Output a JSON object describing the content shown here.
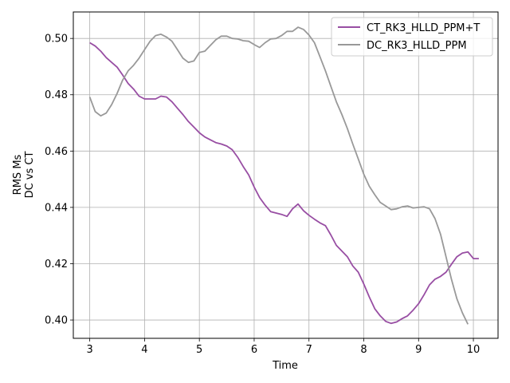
{
  "chart_data": {
    "type": "line",
    "xlabel": "Time",
    "ylabel_lines": [
      "RMS Ms",
      "DC vs CT"
    ],
    "xlim": [
      2.7,
      10.45
    ],
    "ylim": [
      0.3935,
      0.5094
    ],
    "xticks": [
      3,
      4,
      5,
      6,
      7,
      8,
      9,
      10
    ],
    "yticks": [
      0.4,
      0.42,
      0.44,
      0.46,
      0.48,
      0.5
    ],
    "grid": true,
    "legend_position": "top-right",
    "series": [
      {
        "name": "CT_RK3_HLLD_PPM+T",
        "color": "#984ea3",
        "x": [
          3.0,
          3.1,
          3.2,
          3.3,
          3.4,
          3.5,
          3.6,
          3.7,
          3.8,
          3.9,
          4.0,
          4.1,
          4.2,
          4.3,
          4.4,
          4.5,
          4.6,
          4.7,
          4.8,
          4.9,
          5.0,
          5.1,
          5.2,
          5.3,
          5.4,
          5.5,
          5.6,
          5.7,
          5.8,
          5.9,
          6.0,
          6.1,
          6.2,
          6.3,
          6.4,
          6.5,
          6.6,
          6.7,
          6.8,
          6.9,
          7.0,
          7.1,
          7.2,
          7.3,
          7.4,
          7.5,
          7.6,
          7.7,
          7.8,
          7.9,
          8.0,
          8.1,
          8.2,
          8.3,
          8.4,
          8.5,
          8.6,
          8.7,
          8.8,
          8.9,
          9.0,
          9.1,
          9.2,
          9.3,
          9.4,
          9.5,
          9.6,
          9.7,
          9.8,
          9.9,
          10.0,
          10.1
        ],
        "y": [
          0.4985,
          0.4973,
          0.4955,
          0.4932,
          0.4915,
          0.4898,
          0.487,
          0.484,
          0.482,
          0.4795,
          0.4785,
          0.4785,
          0.4785,
          0.4795,
          0.4792,
          0.4775,
          0.4752,
          0.473,
          0.4705,
          0.4685,
          0.4665,
          0.465,
          0.464,
          0.463,
          0.4625,
          0.4618,
          0.4605,
          0.4578,
          0.4545,
          0.4515,
          0.4472,
          0.4435,
          0.4408,
          0.4385,
          0.438,
          0.4375,
          0.4368,
          0.4395,
          0.4412,
          0.4388,
          0.4372,
          0.4358,
          0.4345,
          0.4335,
          0.4302,
          0.4265,
          0.4245,
          0.4225,
          0.4192,
          0.417,
          0.4128,
          0.4082,
          0.404,
          0.4015,
          0.3995,
          0.3988,
          0.3993,
          0.4005,
          0.4015,
          0.4035,
          0.4058,
          0.409,
          0.4125,
          0.4145,
          0.4155,
          0.417,
          0.4198,
          0.4225,
          0.4238,
          0.4242,
          0.4218,
          0.4218
        ]
      },
      {
        "name": "DC_RK3_HLLD_PPM",
        "color": "#999999",
        "x": [
          3.0,
          3.1,
          3.2,
          3.3,
          3.4,
          3.5,
          3.6,
          3.7,
          3.8,
          3.9,
          4.0,
          4.1,
          4.2,
          4.3,
          4.4,
          4.5,
          4.6,
          4.7,
          4.8,
          4.9,
          5.0,
          5.1,
          5.2,
          5.3,
          5.4,
          5.5,
          5.6,
          5.7,
          5.8,
          5.9,
          6.0,
          6.1,
          6.2,
          6.3,
          6.4,
          6.5,
          6.6,
          6.7,
          6.8,
          6.9,
          7.0,
          7.1,
          7.2,
          7.3,
          7.4,
          7.5,
          7.6,
          7.7,
          7.8,
          7.9,
          8.0,
          8.1,
          8.2,
          8.3,
          8.4,
          8.5,
          8.6,
          8.7,
          8.8,
          8.9,
          9.0,
          9.1,
          9.2,
          9.3,
          9.4,
          9.5,
          9.6,
          9.7,
          9.8,
          9.9
        ],
        "y": [
          0.4792,
          0.474,
          0.4725,
          0.4735,
          0.4765,
          0.4805,
          0.4852,
          0.4885,
          0.4905,
          0.493,
          0.496,
          0.499,
          0.501,
          0.5015,
          0.5005,
          0.499,
          0.496,
          0.493,
          0.4915,
          0.492,
          0.495,
          0.4955,
          0.4975,
          0.4995,
          0.5008,
          0.5008,
          0.5,
          0.4998,
          0.4992,
          0.499,
          0.4978,
          0.4968,
          0.4985,
          0.4998,
          0.5,
          0.501,
          0.5025,
          0.5025,
          0.504,
          0.5032,
          0.5012,
          0.4985,
          0.4935,
          0.4885,
          0.483,
          0.4775,
          0.473,
          0.468,
          0.4625,
          0.4572,
          0.4518,
          0.4475,
          0.4445,
          0.4418,
          0.4405,
          0.4392,
          0.4395,
          0.4402,
          0.4405,
          0.4398,
          0.44,
          0.4402,
          0.4395,
          0.436,
          0.4305,
          0.4225,
          0.4145,
          0.4075,
          0.4025,
          0.3985
        ]
      }
    ]
  }
}
